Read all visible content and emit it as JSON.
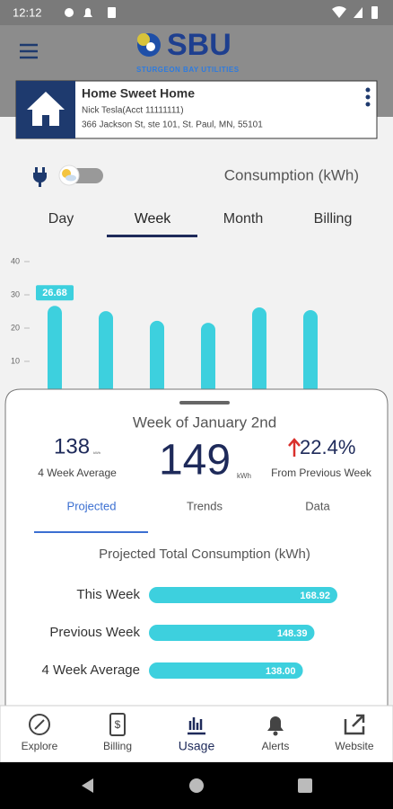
{
  "status_bar": {
    "time": "12:12"
  },
  "header": {
    "logo": "SBU",
    "tagline": "STURGEON BAY UTILITIES"
  },
  "account": {
    "name": "Home Sweet Home",
    "holder": "Nick Tesla(Acct 11111111)",
    "address": "366 Jackson St, ste 101, St. Paul, MN, 55101"
  },
  "mode_label": "Consumption (kWh)",
  "tabs": [
    "Day",
    "Week",
    "Month",
    "Billing"
  ],
  "selected_tab": 1,
  "usage_chart": {
    "type": "bar",
    "values": [
      26.68,
      25.1,
      22.2,
      21.6,
      26.2,
      25.4
    ],
    "color": "#3dd0de",
    "ylim": [
      0,
      40
    ],
    "yticks": [
      10,
      20,
      30,
      40
    ],
    "selected": 0
  },
  "summary": {
    "title": "Week of January 2nd",
    "average": {
      "value": "138",
      "unit": "kWh",
      "label": "4 Week Average"
    },
    "current": {
      "value": "149",
      "unit": "kWh"
    },
    "change": {
      "value": "22.4%",
      "label": "From Previous Week"
    }
  },
  "sub_tabs": [
    "Projected",
    "Trends",
    "Data"
  ],
  "selected_sub_tab": 0,
  "projection": {
    "type": "bar",
    "title": "Projected Total Consumption (kWh)",
    "categories": [
      "This Week",
      "Previous Week",
      "4 Week Average"
    ],
    "values": [
      168.92,
      148.39,
      138.0
    ],
    "value_labels": [
      "168.92",
      "148.39",
      "138.00"
    ],
    "color": "#3dd0de"
  },
  "nav": [
    "Explore",
    "Billing",
    "Usage",
    "Alerts",
    "Website"
  ],
  "selected_nav": 2
}
